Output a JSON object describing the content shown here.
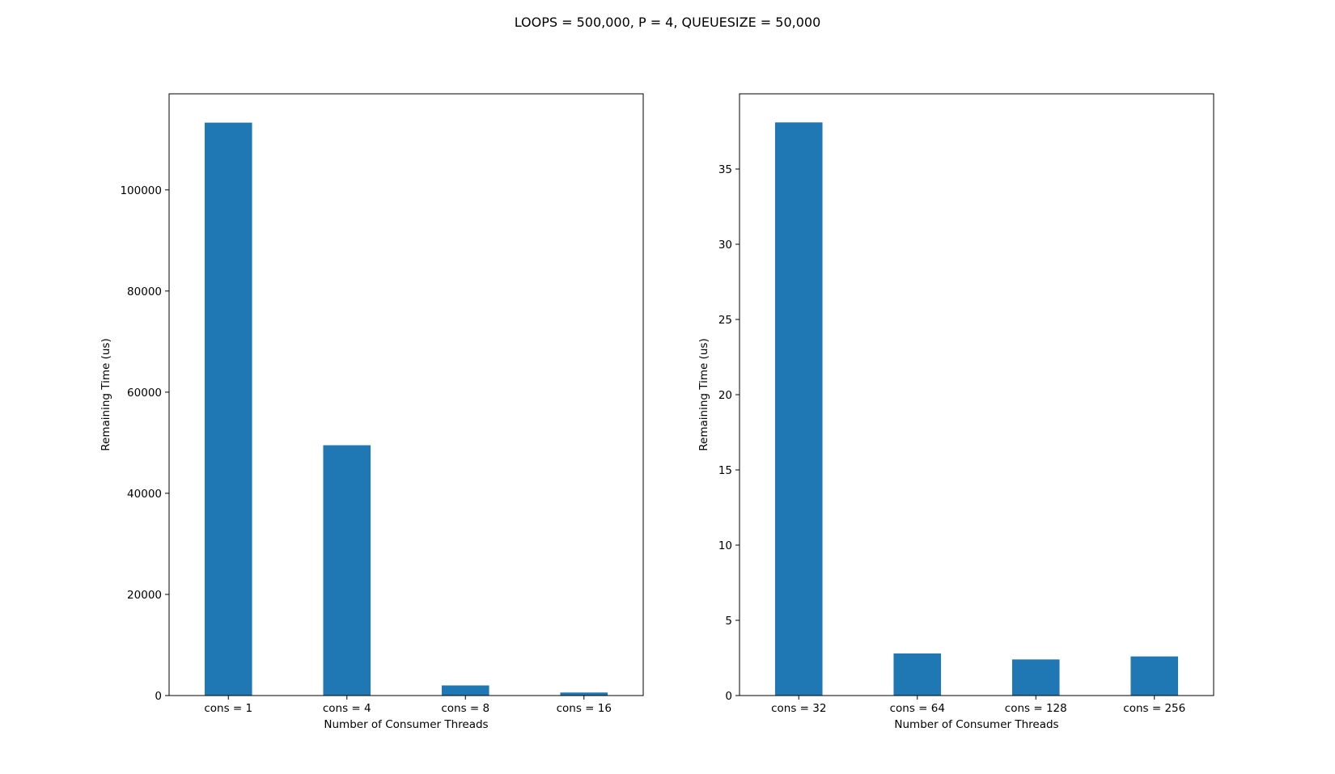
{
  "figure_title": "LOOPS = 500,000, P = 4, QUEUESIZE = 50,000",
  "chart_data": [
    {
      "type": "bar",
      "categories": [
        "cons = 1",
        "cons = 4",
        "cons = 8",
        "cons = 16"
      ],
      "values": [
        113300,
        49500,
        2000,
        600
      ],
      "xlabel": "Number of Consumer Threads",
      "ylabel": "Remaining Time (us)",
      "ylim": [
        0,
        119000
      ],
      "yticks": [
        0,
        20000,
        40000,
        60000,
        80000,
        100000
      ],
      "ytick_labels": [
        "0",
        "20000",
        "40000",
        "60000",
        "80000",
        "100000"
      ],
      "bar_color": "#1f77b4",
      "grid": false
    },
    {
      "type": "bar",
      "categories": [
        "cons = 32",
        "cons = 64",
        "cons = 128",
        "cons = 256"
      ],
      "values": [
        38.1,
        2.8,
        2.4,
        2.6
      ],
      "xlabel": "Number of Consumer Threads",
      "ylabel": "Remaining Time (us)",
      "ylim": [
        0,
        40
      ],
      "yticks": [
        0,
        5,
        10,
        15,
        20,
        25,
        30,
        35
      ],
      "ytick_labels": [
        "0",
        "5",
        "10",
        "15",
        "20",
        "25",
        "30",
        "35"
      ],
      "bar_color": "#1f77b4",
      "grid": false
    }
  ]
}
